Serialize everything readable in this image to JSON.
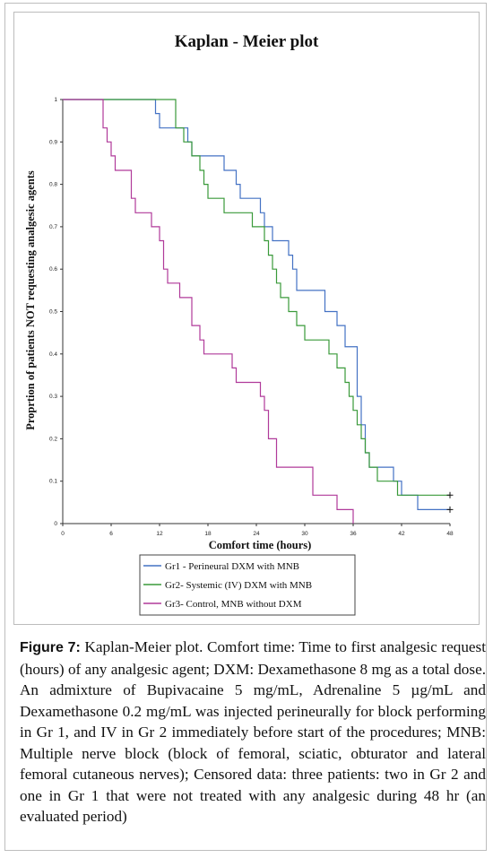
{
  "caption": {
    "label": "Figure 7:",
    "text": " Kaplan-Meier plot. Comfort time: Time to first analgesic request (hours) of any analgesic agent; DXM: Dexamethasone 8 mg as a total dose. An admixture of Bupivacaine 5 mg/mL, Adrenaline 5 µg/mL and Dexamethasone 0.2 mg/mL was injected perineurally for block performing in Gr 1, and IV in Gr 2 immediately before start of the procedures; MNB: Multiple nerve block (block of femoral, sciatic, obturator and lateral femoral cutaneous nerves); Censored data: three patients: two in Gr 2 and one in Gr 1 that were not treated with any analgesic during 48 hr (an evaluated period)"
  },
  "chart_data": {
    "type": "line",
    "title": "Kaplan - Meier plot",
    "xlabel": "Comfort time (hours)",
    "ylabel": "Proprtion of patients NOT requesting analgesic agents",
    "xlim": [
      0,
      48
    ],
    "ylim": [
      0,
      1
    ],
    "x_ticks": [
      "0",
      "6",
      "12",
      "18",
      "24",
      "30",
      "36",
      "42",
      "48"
    ],
    "y_ticks": [
      "0",
      "0.1",
      "0.2",
      "0.3",
      "0.4",
      "0.5",
      "0.6",
      "0.7",
      "0.8",
      "0.9",
      "1"
    ],
    "grid": false,
    "legend_position": "bottom",
    "series": [
      {
        "name": "Gr1 - Perineural DXM with MNB",
        "color": "#4472c4",
        "points": [
          [
            0,
            1
          ],
          [
            11.5,
            1
          ],
          [
            11.5,
            0.967
          ],
          [
            12,
            0.967
          ],
          [
            12,
            0.933
          ],
          [
            15.5,
            0.933
          ],
          [
            15.5,
            0.9
          ],
          [
            16,
            0.9
          ],
          [
            16,
            0.867
          ],
          [
            20,
            0.867
          ],
          [
            20,
            0.833
          ],
          [
            21.5,
            0.833
          ],
          [
            21.5,
            0.8
          ],
          [
            22,
            0.8
          ],
          [
            22,
            0.767
          ],
          [
            24.5,
            0.767
          ],
          [
            24.5,
            0.733
          ],
          [
            25,
            0.733
          ],
          [
            25,
            0.7
          ],
          [
            26,
            0.7
          ],
          [
            26,
            0.667
          ],
          [
            28,
            0.667
          ],
          [
            28,
            0.633
          ],
          [
            28.5,
            0.633
          ],
          [
            28.5,
            0.6
          ],
          [
            29,
            0.6
          ],
          [
            29,
            0.55
          ],
          [
            32.5,
            0.55
          ],
          [
            32.5,
            0.5
          ],
          [
            34,
            0.5
          ],
          [
            34,
            0.467
          ],
          [
            35,
            0.467
          ],
          [
            35,
            0.417
          ],
          [
            36.5,
            0.417
          ],
          [
            36.5,
            0.3
          ],
          [
            37,
            0.3
          ],
          [
            37,
            0.233
          ],
          [
            37.5,
            0.233
          ],
          [
            37.5,
            0.167
          ],
          [
            38,
            0.167
          ],
          [
            38,
            0.133
          ],
          [
            41,
            0.133
          ],
          [
            41,
            0.1
          ],
          [
            42,
            0.1
          ],
          [
            42,
            0.067
          ],
          [
            44,
            0.067
          ],
          [
            44,
            0.033
          ],
          [
            48,
            0.033
          ]
        ],
        "censored": [
          [
            48,
            0.033
          ]
        ]
      },
      {
        "name": "Gr2- Systemic (IV) DXM with MNB",
        "color": "#3a9a3a",
        "points": [
          [
            0,
            1
          ],
          [
            14,
            1
          ],
          [
            14,
            0.933
          ],
          [
            15,
            0.933
          ],
          [
            15,
            0.9
          ],
          [
            16,
            0.9
          ],
          [
            16,
            0.867
          ],
          [
            17,
            0.867
          ],
          [
            17,
            0.833
          ],
          [
            17.5,
            0.833
          ],
          [
            17.5,
            0.8
          ],
          [
            18,
            0.8
          ],
          [
            18,
            0.767
          ],
          [
            20,
            0.767
          ],
          [
            20,
            0.733
          ],
          [
            23.5,
            0.733
          ],
          [
            23.5,
            0.7
          ],
          [
            25,
            0.7
          ],
          [
            25,
            0.667
          ],
          [
            25.5,
            0.667
          ],
          [
            25.5,
            0.633
          ],
          [
            26,
            0.633
          ],
          [
            26,
            0.6
          ],
          [
            26.5,
            0.6
          ],
          [
            26.5,
            0.567
          ],
          [
            27,
            0.567
          ],
          [
            27,
            0.533
          ],
          [
            28,
            0.533
          ],
          [
            28,
            0.5
          ],
          [
            29,
            0.5
          ],
          [
            29,
            0.467
          ],
          [
            30,
            0.467
          ],
          [
            30,
            0.433
          ],
          [
            33,
            0.433
          ],
          [
            33,
            0.4
          ],
          [
            34,
            0.4
          ],
          [
            34,
            0.367
          ],
          [
            35,
            0.367
          ],
          [
            35,
            0.333
          ],
          [
            35.5,
            0.333
          ],
          [
            35.5,
            0.3
          ],
          [
            36,
            0.3
          ],
          [
            36,
            0.267
          ],
          [
            36.5,
            0.267
          ],
          [
            36.5,
            0.233
          ],
          [
            37,
            0.233
          ],
          [
            37,
            0.2
          ],
          [
            37.5,
            0.2
          ],
          [
            37.5,
            0.167
          ],
          [
            38,
            0.167
          ],
          [
            38,
            0.133
          ],
          [
            39,
            0.133
          ],
          [
            39,
            0.1
          ],
          [
            41.5,
            0.1
          ],
          [
            41.5,
            0.067
          ],
          [
            48,
            0.067
          ]
        ],
        "censored": [
          [
            48,
            0.067
          ]
        ]
      },
      {
        "name": "Gr3- Control, MNB without DXM",
        "color": "#b03a9a",
        "points": [
          [
            0,
            1
          ],
          [
            5,
            1
          ],
          [
            5,
            0.933
          ],
          [
            5.5,
            0.933
          ],
          [
            5.5,
            0.9
          ],
          [
            6,
            0.9
          ],
          [
            6,
            0.867
          ],
          [
            6.5,
            0.867
          ],
          [
            6.5,
            0.833
          ],
          [
            8.5,
            0.833
          ],
          [
            8.5,
            0.767
          ],
          [
            9,
            0.767
          ],
          [
            9,
            0.733
          ],
          [
            11,
            0.733
          ],
          [
            11,
            0.7
          ],
          [
            12,
            0.7
          ],
          [
            12,
            0.667
          ],
          [
            12.5,
            0.667
          ],
          [
            12.5,
            0.6
          ],
          [
            13,
            0.6
          ],
          [
            13,
            0.567
          ],
          [
            14.5,
            0.567
          ],
          [
            14.5,
            0.533
          ],
          [
            16,
            0.533
          ],
          [
            16,
            0.467
          ],
          [
            17,
            0.467
          ],
          [
            17,
            0.433
          ],
          [
            17.5,
            0.433
          ],
          [
            17.5,
            0.4
          ],
          [
            21,
            0.4
          ],
          [
            21,
            0.367
          ],
          [
            21.5,
            0.367
          ],
          [
            21.5,
            0.333
          ],
          [
            24.5,
            0.333
          ],
          [
            24.5,
            0.3
          ],
          [
            25,
            0.3
          ],
          [
            25,
            0.267
          ],
          [
            25.5,
            0.267
          ],
          [
            25.5,
            0.2
          ],
          [
            26.5,
            0.2
          ],
          [
            26.5,
            0.133
          ],
          [
            31,
            0.133
          ],
          [
            31,
            0.067
          ],
          [
            34,
            0.067
          ],
          [
            34,
            0.033
          ],
          [
            36,
            0.033
          ],
          [
            36,
            0
          ]
        ]
      }
    ]
  }
}
